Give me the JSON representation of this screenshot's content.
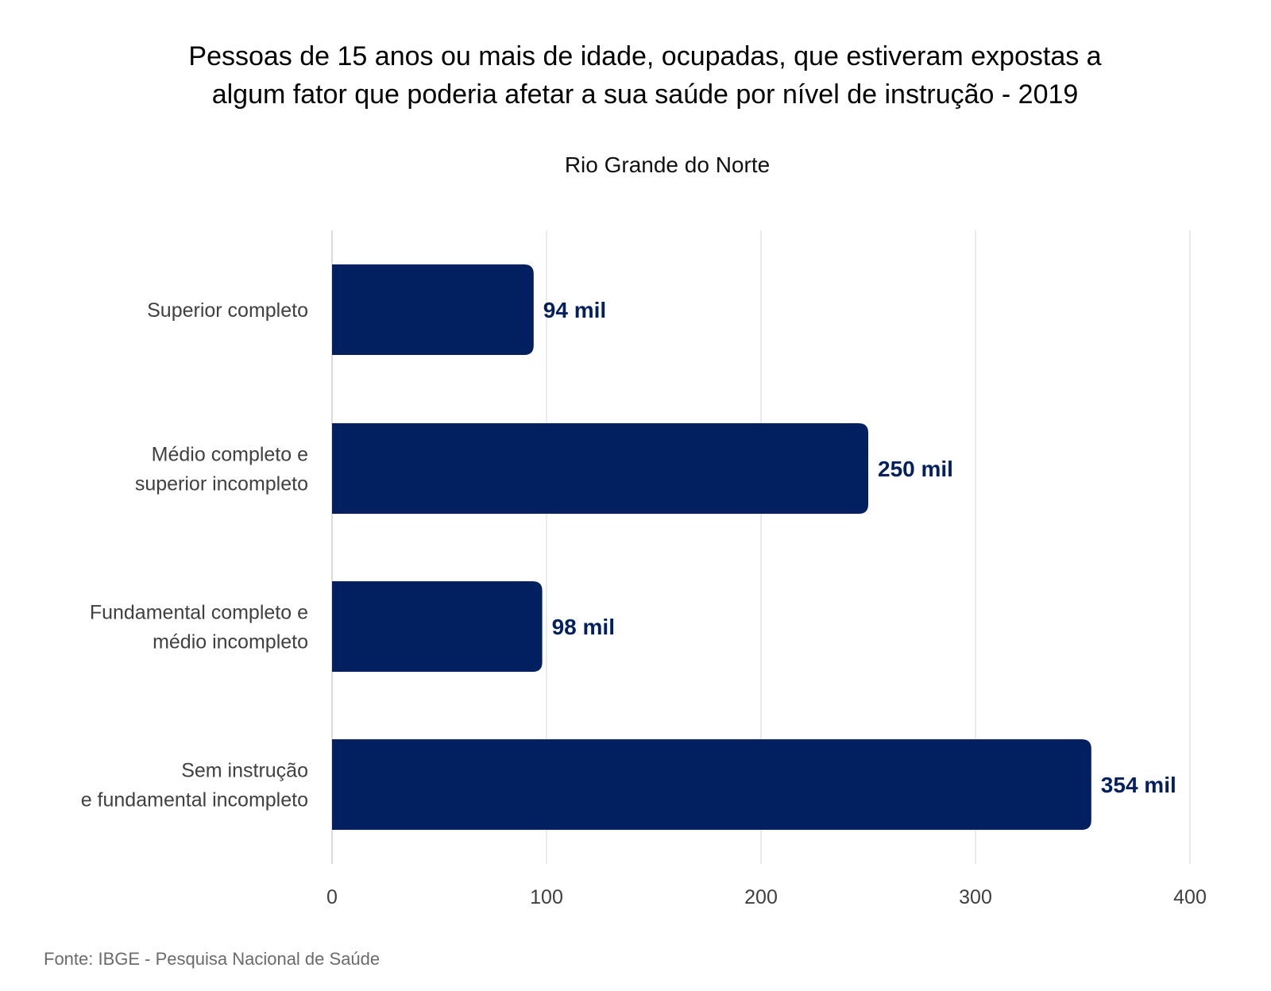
{
  "chart_data": {
    "type": "bar",
    "orientation": "horizontal",
    "title_lines": [
      "Pessoas de 15 anos ou mais de idade, ocupadas, que estiveram expostas a",
      "algum fator que poderia afetar a sua saúde por nível de instrução - 2019"
    ],
    "subtitle": "Rio Grande do Norte",
    "categories": [
      [
        "Superior completo"
      ],
      [
        "Médio completo e",
        "superior incompleto"
      ],
      [
        "Fundamental completo e",
        "médio incompleto"
      ],
      [
        "Sem instrução",
        "e fundamental incompleto"
      ]
    ],
    "values": [
      94,
      250,
      98,
      354
    ],
    "value_labels": [
      "94 mil",
      "250 mil",
      "98 mil",
      "354 mil"
    ],
    "x_ticks": [
      0,
      100,
      200,
      300,
      400
    ],
    "xlim": [
      0,
      400
    ],
    "xlabel": "",
    "ylabel": "",
    "grid": true,
    "source": "Fonte: IBGE - Pesquisa Nacional de Saúde"
  },
  "colors": {
    "bar": "#02205f",
    "value_label": "#02205f"
  }
}
